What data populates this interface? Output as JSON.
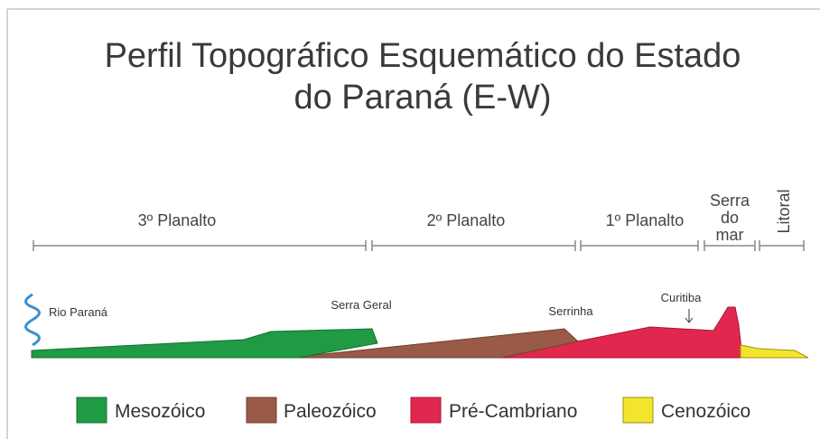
{
  "title": [
    "Perfil Topográfico Esquemático do Estado",
    "do Paraná (E-W)"
  ],
  "regions": [
    {
      "label": [
        "3º Planalto"
      ]
    },
    {
      "label": [
        "2º Planalto"
      ]
    },
    {
      "label": [
        "1º Planalto"
      ]
    },
    {
      "label": [
        "Serra",
        "do",
        "mar"
      ]
    },
    {
      "label": [
        "Litoral"
      ]
    }
  ],
  "places": [
    "Rio Paraná",
    "Serra Geral",
    "Serrinha",
    "Curitiba"
  ],
  "legend": [
    "Mesozóico",
    "Paleozóico",
    "Pré-Cambriano",
    "Cenozóico"
  ]
}
